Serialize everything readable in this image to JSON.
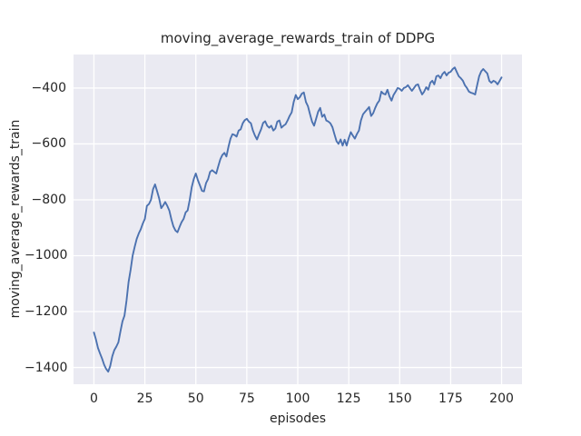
{
  "colors": {
    "figure_background": "#FFFFFF",
    "axes_background": "#EAEAF2",
    "grid": "#FFFFFF",
    "text": "#262626",
    "line": "#4C72B0"
  },
  "chart_data": {
    "type": "line",
    "style": "seaborn-darkgrid",
    "title": "moving_average_rewards_train of DDPG",
    "xlabel": "episodes",
    "ylabel": "moving_average_rewards_train",
    "legend": false,
    "grid": true,
    "xlim": [
      -10,
      210
    ],
    "ylim": [
      -1460,
      -280
    ],
    "xticks": [
      0,
      25,
      50,
      75,
      100,
      125,
      150,
      175,
      200
    ],
    "xtick_labels": [
      "0",
      "25",
      "50",
      "75",
      "100",
      "125",
      "150",
      "175",
      "200"
    ],
    "yticks": [
      -400,
      -600,
      -800,
      -1000,
      -1200,
      -1400
    ],
    "ytick_labels": [
      "−400",
      "−600",
      "−800",
      "−1000",
      "−1200",
      "−1400"
    ],
    "series_name": "moving_average_rewards_train",
    "x": [
      0,
      1,
      2,
      3,
      4,
      5,
      6,
      7,
      8,
      9,
      10,
      11,
      12,
      13,
      14,
      15,
      16,
      17,
      18,
      19,
      20,
      21,
      22,
      23,
      24,
      25,
      26,
      27,
      28,
      29,
      30,
      31,
      32,
      33,
      34,
      35,
      36,
      37,
      38,
      39,
      40,
      41,
      42,
      43,
      44,
      45,
      46,
      47,
      48,
      49,
      50,
      51,
      52,
      53,
      54,
      55,
      56,
      57,
      58,
      59,
      60,
      61,
      62,
      63,
      64,
      65,
      66,
      67,
      68,
      69,
      70,
      71,
      72,
      73,
      74,
      75,
      76,
      77,
      78,
      79,
      80,
      81,
      82,
      83,
      84,
      85,
      86,
      87,
      88,
      89,
      90,
      91,
      92,
      93,
      94,
      95,
      96,
      97,
      98,
      99,
      100,
      101,
      102,
      103,
      104,
      105,
      106,
      107,
      108,
      109,
      110,
      111,
      112,
      113,
      114,
      115,
      116,
      117,
      118,
      119,
      120,
      121,
      122,
      123,
      124,
      125,
      126,
      127,
      128,
      129,
      130,
      131,
      132,
      133,
      134,
      135,
      136,
      137,
      138,
      139,
      140,
      141,
      142,
      143,
      144,
      145,
      146,
      147,
      148,
      149,
      150,
      151,
      152,
      153,
      154,
      155,
      156,
      157,
      158,
      159,
      160,
      161,
      162,
      163,
      164,
      165,
      166,
      167,
      168,
      169,
      170,
      171,
      172,
      173,
      174,
      175,
      176,
      177,
      178,
      179,
      180,
      181,
      182,
      183,
      184,
      185,
      186,
      187,
      188,
      189,
      190,
      191,
      192,
      193,
      194,
      195,
      196,
      197,
      198,
      199,
      200
    ],
    "values": [
      -1275,
      -1300,
      -1330,
      -1350,
      -1368,
      -1390,
      -1405,
      -1415,
      -1395,
      -1360,
      -1338,
      -1325,
      -1310,
      -1272,
      -1235,
      -1215,
      -1160,
      -1095,
      -1050,
      -1000,
      -968,
      -940,
      -920,
      -905,
      -885,
      -868,
      -822,
      -815,
      -800,
      -762,
      -745,
      -770,
      -795,
      -830,
      -820,
      -808,
      -822,
      -838,
      -870,
      -895,
      -910,
      -916,
      -897,
      -880,
      -868,
      -845,
      -838,
      -800,
      -755,
      -725,
      -706,
      -730,
      -748,
      -768,
      -770,
      -740,
      -726,
      -700,
      -694,
      -700,
      -706,
      -680,
      -655,
      -640,
      -632,
      -645,
      -610,
      -581,
      -565,
      -568,
      -574,
      -552,
      -548,
      -526,
      -515,
      -510,
      -520,
      -526,
      -552,
      -570,
      -584,
      -565,
      -548,
      -525,
      -519,
      -535,
      -542,
      -535,
      -552,
      -545,
      -520,
      -516,
      -542,
      -535,
      -530,
      -516,
      -500,
      -487,
      -450,
      -425,
      -440,
      -433,
      -420,
      -416,
      -450,
      -465,
      -494,
      -520,
      -535,
      -510,
      -484,
      -471,
      -503,
      -495,
      -516,
      -520,
      -526,
      -540,
      -565,
      -590,
      -600,
      -584,
      -606,
      -585,
      -606,
      -580,
      -558,
      -570,
      -581,
      -565,
      -552,
      -516,
      -494,
      -485,
      -477,
      -468,
      -500,
      -490,
      -471,
      -455,
      -445,
      -413,
      -420,
      -423,
      -406,
      -430,
      -445,
      -425,
      -413,
      -400,
      -403,
      -410,
      -400,
      -397,
      -390,
      -400,
      -410,
      -400,
      -390,
      -387,
      -406,
      -423,
      -413,
      -397,
      -406,
      -381,
      -374,
      -387,
      -358,
      -355,
      -365,
      -350,
      -342,
      -355,
      -345,
      -342,
      -332,
      -326,
      -342,
      -358,
      -365,
      -374,
      -390,
      -400,
      -413,
      -417,
      -419,
      -423,
      -390,
      -358,
      -340,
      -332,
      -340,
      -348,
      -375,
      -381,
      -374,
      -378,
      -387,
      -375,
      -362
    ]
  }
}
